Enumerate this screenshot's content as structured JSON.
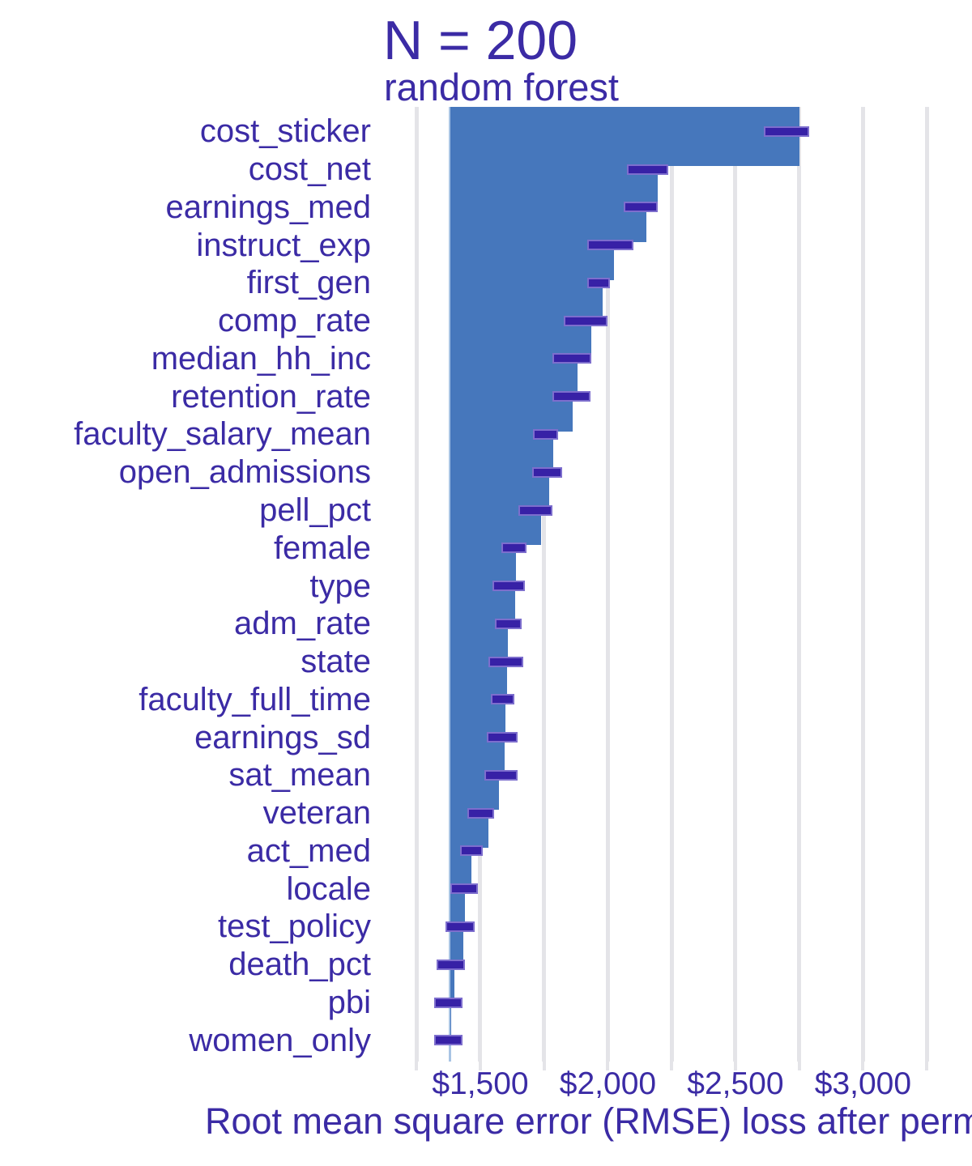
{
  "title": "N = 200",
  "subtitle": "random forest",
  "x_axis_title": "Root mean square error (RMSE) loss after permutations",
  "chart_data": {
    "type": "bar",
    "orientation": "horizontal",
    "title": "N = 200",
    "subtitle": "random forest",
    "xlabel": "Root mean square error (RMSE) loss after permutations",
    "baseline_rmse": 1382,
    "xlim": [
      1119,
      3294
    ],
    "grid": true,
    "gridline_values": [
      1250,
      1500,
      1750,
      2000,
      2250,
      2500,
      2750,
      3000,
      3250
    ],
    "x_ticks": [
      {
        "value": 1500,
        "label": "$1,500"
      },
      {
        "value": 2000,
        "label": "$2,000"
      },
      {
        "value": 2500,
        "label": "$2,500"
      },
      {
        "value": 3000,
        "label": "$3,000"
      }
    ],
    "series": [
      {
        "name": "cost_sticker",
        "rmse": 2750,
        "box_low": 2617,
        "box_high": 2783
      },
      {
        "name": "cost_net",
        "rmse": 2195,
        "box_low": 2081,
        "box_high": 2231
      },
      {
        "name": "earnings_med",
        "rmse": 2151,
        "box_low": 2067,
        "box_high": 2190
      },
      {
        "name": "instruct_exp",
        "rmse": 2024,
        "box_low": 1926,
        "box_high": 2094
      },
      {
        "name": "first_gen",
        "rmse": 1980,
        "box_low": 1926,
        "box_high": 2001
      },
      {
        "name": "comp_rate",
        "rmse": 1935,
        "box_low": 1832,
        "box_high": 1993
      },
      {
        "name": "median_hh_inc",
        "rmse": 1882,
        "box_low": 1790,
        "box_high": 1930
      },
      {
        "name": "retention_rate",
        "rmse": 1861,
        "box_low": 1790,
        "box_high": 1926
      },
      {
        "name": "faculty_salary_mean",
        "rmse": 1785,
        "box_low": 1713,
        "box_high": 1797
      },
      {
        "name": "open_admissions",
        "rmse": 1771,
        "box_low": 1711,
        "box_high": 1813
      },
      {
        "name": "pell_pct",
        "rmse": 1739,
        "box_low": 1655,
        "box_high": 1776
      },
      {
        "name": "female",
        "rmse": 1639,
        "box_low": 1589,
        "box_high": 1676
      },
      {
        "name": "type",
        "rmse": 1636,
        "box_low": 1554,
        "box_high": 1667
      },
      {
        "name": "adm_rate",
        "rmse": 1609,
        "box_low": 1564,
        "box_high": 1657
      },
      {
        "name": "state",
        "rmse": 1605,
        "box_low": 1538,
        "box_high": 1662
      },
      {
        "name": "faculty_full_time",
        "rmse": 1599,
        "box_low": 1549,
        "box_high": 1628
      },
      {
        "name": "earnings_sd",
        "rmse": 1596,
        "box_low": 1533,
        "box_high": 1641
      },
      {
        "name": "sat_mean",
        "rmse": 1573,
        "box_low": 1522,
        "box_high": 1639
      },
      {
        "name": "veteran",
        "rmse": 1533,
        "box_low": 1457,
        "box_high": 1549
      },
      {
        "name": "act_med",
        "rmse": 1464,
        "box_low": 1427,
        "box_high": 1503
      },
      {
        "name": "locale",
        "rmse": 1440,
        "box_low": 1390,
        "box_high": 1485
      },
      {
        "name": "test_policy",
        "rmse": 1432,
        "box_low": 1369,
        "box_high": 1472
      },
      {
        "name": "death_pct",
        "rmse": 1398,
        "box_low": 1335,
        "box_high": 1432
      },
      {
        "name": "pbi",
        "rmse": 1384,
        "box_low": 1324,
        "box_high": 1425
      },
      {
        "name": "women_only",
        "rmse": 1381,
        "box_low": 1326,
        "box_high": 1424
      }
    ]
  },
  "colors": {
    "bar": "#4677BC",
    "box": "#3721A6",
    "box_border": "#7D6ECD",
    "text": "#3B2BA5",
    "gridline": "#E4E4E8",
    "baseline": "#A8C4E4"
  }
}
